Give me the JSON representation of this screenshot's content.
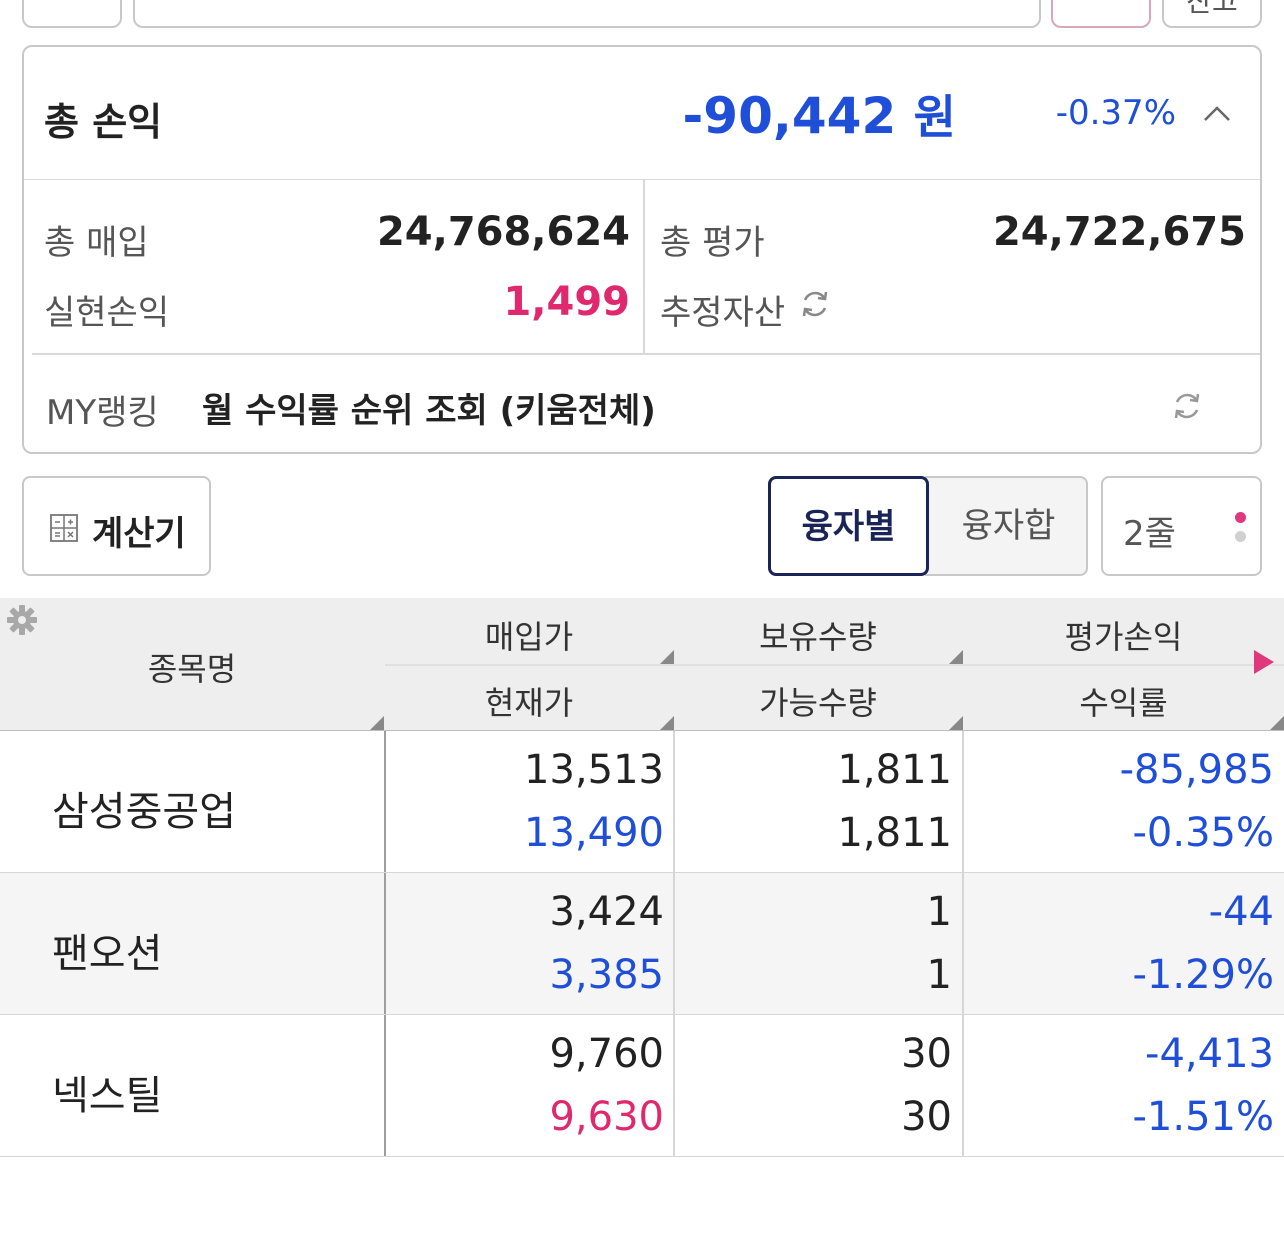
{
  "top": {
    "right_tab_label": "잔고"
  },
  "summary": {
    "title": "총 손익",
    "total_pl_amount": "-90,442",
    "total_pl_unit": "원",
    "total_pl_rate": "-0.37%",
    "purchase_label": "총 매입",
    "purchase_value": "24,768,624",
    "evaluation_label": "총 평가",
    "evaluation_value": "24,722,675",
    "realized_label": "실현손익",
    "realized_value": "1,499",
    "estimated_label": "추정자산",
    "ranking_label": "MY랭킹",
    "ranking_link": "월 수익률 순위 조회 (키움전체)"
  },
  "toolbar": {
    "calculator_label": "계산기",
    "seg_by_loan": "융자별",
    "seg_loan_sum": "융자합",
    "lines_label": "2줄"
  },
  "table": {
    "headers": {
      "name": "종목명",
      "buy_price": "매입가",
      "current_price": "현재가",
      "holding_qty": "보유수량",
      "available_qty": "가능수량",
      "eval_pl": "평가손익",
      "return_rate": "수익률"
    },
    "rows": [
      {
        "name": "삼성중공업",
        "buy_price": "13,513",
        "current_price": "13,490",
        "holding_qty": "1,811",
        "available_qty": "1,811",
        "eval_pl": "-85,985",
        "return_rate": "-0.35%"
      },
      {
        "name": "팬오션",
        "buy_price": "3,424",
        "current_price": "3,385",
        "holding_qty": "1",
        "available_qty": "1",
        "eval_pl": "-44",
        "return_rate": "-1.29%"
      },
      {
        "name": "넥스틸",
        "buy_price": "9,760",
        "current_price": "9,630",
        "holding_qty": "30",
        "available_qty": "30",
        "eval_pl": "-4,413",
        "return_rate": "-1.51%"
      }
    ]
  },
  "colors": {
    "loss": "#1f4fd8",
    "gain": "#e0286e",
    "accent_navy": "#1a2456"
  }
}
